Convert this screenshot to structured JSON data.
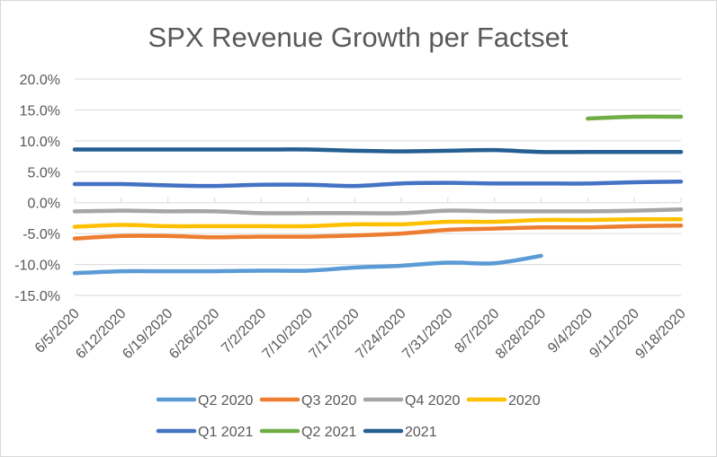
{
  "chart_data": {
    "type": "line",
    "title": "SPX Revenue Growth per Factset",
    "xlabel": "",
    "ylabel": "",
    "ylim": [
      -15,
      20
    ],
    "ytick_step": 5,
    "ytick_labels": [
      "20.0%",
      "15.0%",
      "10.0%",
      "5.0%",
      "0.0%",
      "-5.0%",
      "-10.0%",
      "-15.0%"
    ],
    "grid": true,
    "legend_position": "bottom",
    "categories": [
      "6/5/2020",
      "6/12/2020",
      "6/19/2020",
      "6/26/2020",
      "7/2/2020",
      "7/10/2020",
      "7/17/2020",
      "7/24/2020",
      "7/31/2020",
      "8/7/2020",
      "8/28/2020",
      "9/4/2020",
      "9/11/2020",
      "9/18/2020"
    ],
    "series": [
      {
        "name": "Q2 2020",
        "color": "#5b9bd5",
        "values": [
          -11.4,
          -11.1,
          -11.1,
          -11.1,
          -11.0,
          -11.0,
          -10.5,
          -10.2,
          -9.7,
          -9.8,
          -8.6,
          null,
          null,
          null
        ]
      },
      {
        "name": "Q3 2020",
        "color": "#ed7d31",
        "values": [
          -5.8,
          -5.4,
          -5.4,
          -5.6,
          -5.5,
          -5.5,
          -5.3,
          -5.0,
          -4.4,
          -4.2,
          -4.0,
          -4.0,
          -3.8,
          -3.7
        ]
      },
      {
        "name": "Q4 2020",
        "color": "#a5a5a5",
        "values": [
          -1.4,
          -1.3,
          -1.4,
          -1.4,
          -1.7,
          -1.7,
          -1.7,
          -1.7,
          -1.3,
          -1.4,
          -1.4,
          -1.4,
          -1.3,
          -1.1
        ]
      },
      {
        "name": "2020",
        "color": "#ffc000",
        "values": [
          -3.9,
          -3.6,
          -3.8,
          -3.8,
          -3.8,
          -3.8,
          -3.5,
          -3.5,
          -3.1,
          -3.1,
          -2.8,
          -2.8,
          -2.7,
          -2.7
        ]
      },
      {
        "name": "Q1 2021",
        "color": "#4472c4",
        "values": [
          3.0,
          3.0,
          2.8,
          2.7,
          2.9,
          2.9,
          2.7,
          3.1,
          3.2,
          3.1,
          3.1,
          3.1,
          3.3,
          3.4
        ]
      },
      {
        "name": "Q2 2021",
        "color": "#70ad47",
        "values": [
          null,
          null,
          null,
          null,
          null,
          null,
          null,
          null,
          null,
          null,
          null,
          13.6,
          13.9,
          13.9
        ]
      },
      {
        "name": "2021",
        "color": "#255e91",
        "values": [
          8.6,
          8.6,
          8.6,
          8.6,
          8.6,
          8.6,
          8.4,
          8.3,
          8.4,
          8.5,
          8.2,
          8.2,
          8.2,
          8.2
        ]
      }
    ]
  }
}
